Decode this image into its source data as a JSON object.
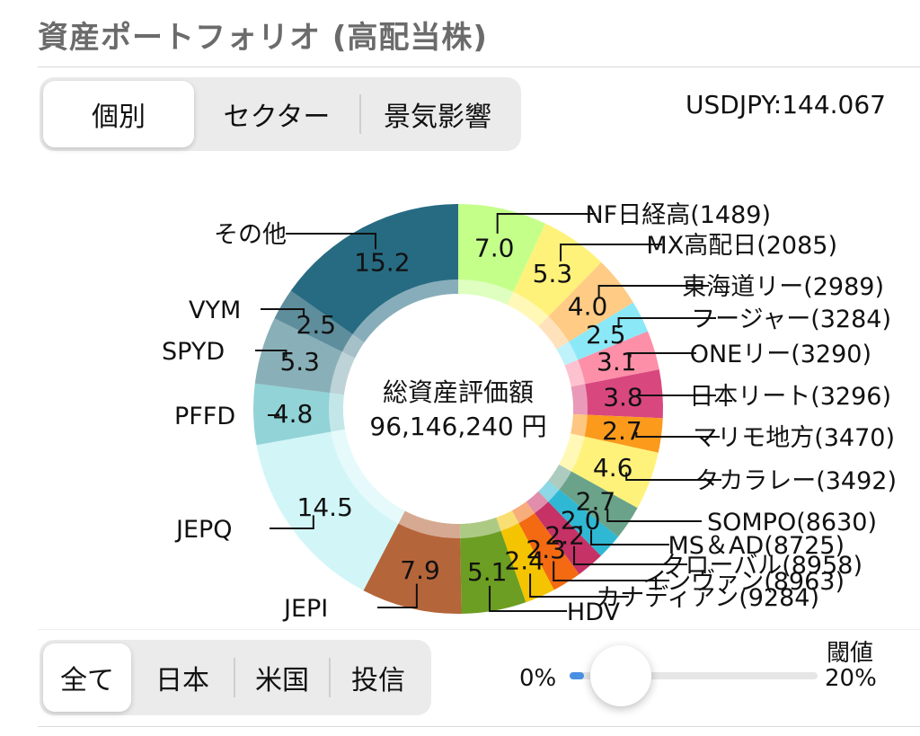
{
  "header": {
    "title": "資産ポートフォリオ (高配当株)"
  },
  "view_tabs": [
    "個別",
    "セクター",
    "景気影響"
  ],
  "selected_view": "個別",
  "usdjpy": "USDJPY:144.067",
  "center": {
    "label": "総資産評価額",
    "value": "96,146,240 円"
  },
  "filter_tabs": [
    "全て",
    "日本",
    "米国",
    "投信"
  ],
  "selected_filter": "全て",
  "threshold": {
    "label": "閾値",
    "min": "0%",
    "max": "20%",
    "value": 0.01
  },
  "chart_data": {
    "type": "pie",
    "variant": "donut",
    "unit": "%",
    "slices": [
      {
        "label": "NF日経高(1489)",
        "value": 7.0,
        "color": "#c4ff8a"
      },
      {
        "label": "MX高配日(2085)",
        "value": 5.3,
        "color": "#fff27a"
      },
      {
        "label": "東海道リー(2989)",
        "value": 4.0,
        "color": "#ffcb85"
      },
      {
        "label": "フージャー(3284)",
        "value": 2.5,
        "color": "#8be8f7"
      },
      {
        "label": "ONEリー(3290)",
        "value": 3.1,
        "color": "#fd8fa8"
      },
      {
        "label": "日本リート(3296)",
        "value": 3.8,
        "color": "#d9477f"
      },
      {
        "label": "マリモ地方(3470)",
        "value": 2.7,
        "color": "#fb9a1b"
      },
      {
        "label": "タカラレー(3492)",
        "value": 4.6,
        "color": "#fff27a"
      },
      {
        "label": "SOMPO(8630)",
        "value": 2.7,
        "color": "#6aa38a"
      },
      {
        "label": "MS＆AD(8725)",
        "value": 2.0,
        "color": "#2fb8d4"
      },
      {
        "label": "クローバル(8958)",
        "value": 2.2,
        "color": "#c63266"
      },
      {
        "label": "インヴァン(8963)",
        "value": 2.3,
        "color": "#f36a12"
      },
      {
        "label": "カナディアン(9284)",
        "value": 2.4,
        "color": "#f5c400"
      },
      {
        "label": "HDV",
        "value": 5.1,
        "color": "#6b9e22"
      },
      {
        "label": "JEPI",
        "value": 7.9,
        "color": "#b5653a"
      },
      {
        "label": "JEPQ",
        "value": 14.5,
        "color": "#d2f6f7"
      },
      {
        "label": "PFFD",
        "value": 4.8,
        "color": "#92d3d7"
      },
      {
        "label": "SPYD",
        "value": 5.3,
        "color": "#89b0b8"
      },
      {
        "label": "VYM",
        "value": 2.5,
        "color": "#5e8d9c"
      },
      {
        "label": "その他",
        "value": 15.2,
        "color": "#276b82"
      }
    ]
  }
}
